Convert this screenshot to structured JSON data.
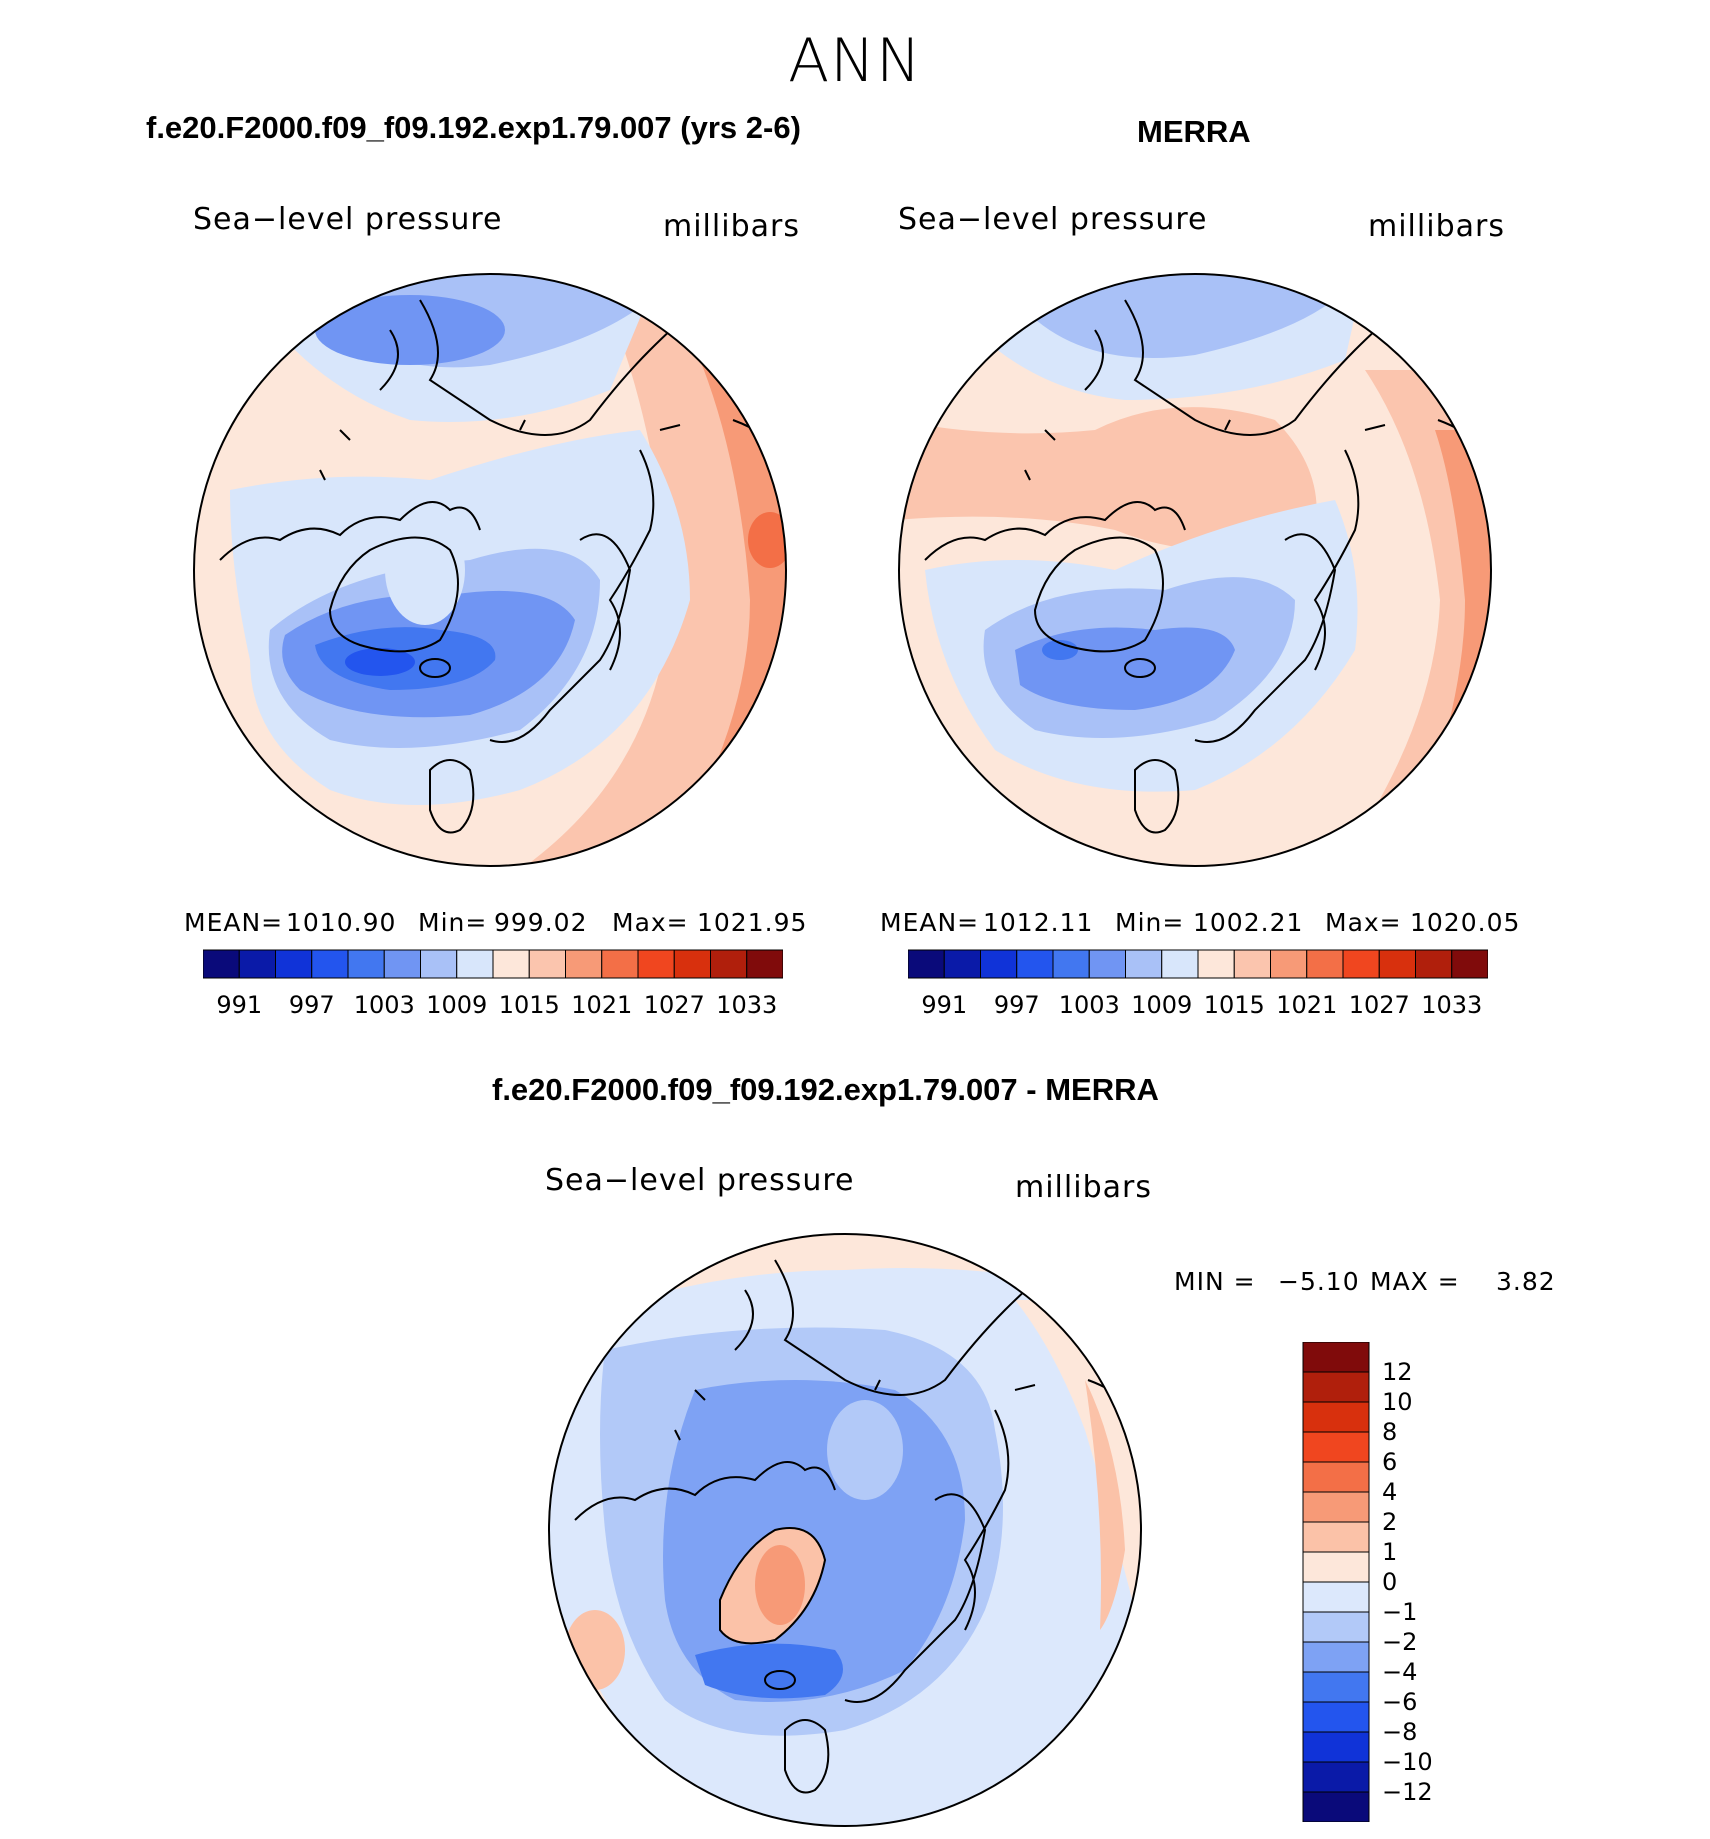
{
  "season": "ANN",
  "colors": {
    "abs_palette": [
      "#0a0a7a",
      "#0a1aa8",
      "#1033d8",
      "#2355ee",
      "#4277f0",
      "#7095f3",
      "#a9c1f7",
      "#d8e6fb",
      "#fde7da",
      "#fbc5ae",
      "#f79a77",
      "#f36f47",
      "#f0461f",
      "#d8300d",
      "#b01f0c",
      "#800b0b"
    ],
    "diff_palette": [
      "#0a0a7a",
      "#0a1aa8",
      "#1033d8",
      "#2355ee",
      "#4277f0",
      "#7ea2f4",
      "#b2c9f8",
      "#dce8fc",
      "#fde7da",
      "#fbc2a8",
      "#f79a77",
      "#f36f47",
      "#f0461f",
      "#d8300d",
      "#b01f0c",
      "#800b0b"
    ]
  },
  "panels": {
    "model": {
      "title": "f.e20.F2000.f09_f09.192.exp1.79.007 (yrs 2-6)",
      "variable": "Sea−level pressure",
      "units": "millibars",
      "mean_label": "MEAN=",
      "mean": "1010.90",
      "min_label": "Min=",
      "min": "999.02",
      "max_label": "Max=",
      "max": "1021.95"
    },
    "obs": {
      "title": "MERRA",
      "variable": "Sea−level pressure",
      "units": "millibars",
      "mean_label": "MEAN=",
      "mean": "1012.11",
      "min_label": "Min=",
      "min": "1002.21",
      "max_label": "Max=",
      "max": "1020.05"
    },
    "diff": {
      "title": "f.e20.F2000.f09_f09.192.exp1.79.007 - MERRA",
      "variable": "Sea−level pressure",
      "units": "millibars",
      "min_label": "MIN =",
      "min": "−5.10",
      "max_label": "MAX =",
      "max": "3.82"
    }
  },
  "abs_colorbar_ticks": [
    "991",
    "997",
    "1003",
    "1009",
    "1015",
    "1021",
    "1027",
    "1033"
  ],
  "diff_colorbar_ticks": [
    "12",
    "10",
    "8",
    "6",
    "4",
    "2",
    "1",
    "0",
    "−1",
    "−2",
    "−4",
    "−6",
    "−8",
    "−10",
    "−12"
  ]
}
